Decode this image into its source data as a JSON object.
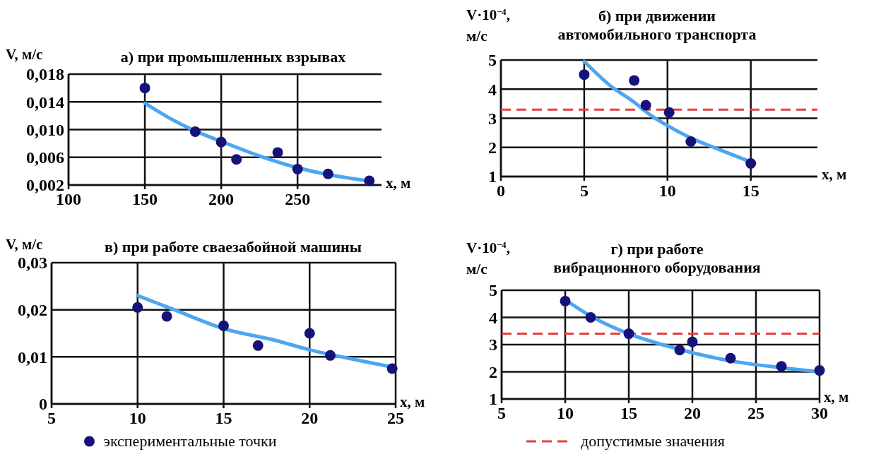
{
  "chart_data": [
    {
      "type": "scatter",
      "title": "а) при промышленных взрывах",
      "ylabel": "V, м/с",
      "xlabel": "x, м",
      "xlim": [
        100,
        305
      ],
      "ylim": [
        0.002,
        0.018
      ],
      "xticks": [
        100,
        150,
        200,
        250
      ],
      "yticks": [
        {
          "value": 0.002,
          "label": "0,002"
        },
        {
          "value": 0.006,
          "label": "0,006"
        },
        {
          "value": 0.01,
          "label": "0,010"
        },
        {
          "value": 0.014,
          "label": "0,014"
        },
        {
          "value": 0.018,
          "label": "0,018"
        }
      ],
      "grid": true,
      "series": [
        {
          "type": "line",
          "marker": "none",
          "color": "#4da6f0",
          "x": [
            150,
            165,
            183,
            200,
            225,
            250,
            270,
            297
          ],
          "values": [
            0.0138,
            0.0118,
            0.0098,
            0.0083,
            0.0062,
            0.0045,
            0.0035,
            0.0026
          ]
        },
        {
          "marker": "circle",
          "color": "#15127a",
          "x": [
            150,
            183,
            200,
            210,
            237,
            250,
            270,
            297
          ],
          "values": [
            0.016,
            0.0097,
            0.0082,
            0.0057,
            0.0067,
            0.0043,
            0.0036,
            0.0026
          ]
        }
      ]
    },
    {
      "type": "scatter",
      "title": "б) при движении\nавтомобильного транспорта",
      "ylabel": "V·10$^{−4}$,\nм/с",
      "xlabel": "x, м",
      "xlim": [
        0,
        19
      ],
      "ylim": [
        1,
        5
      ],
      "xticks": [
        0,
        5,
        10,
        15
      ],
      "yticks": [
        1,
        2,
        3,
        4,
        5
      ],
      "grid": true,
      "ref_lines": [
        {
          "axis": "y",
          "value": 3.3,
          "color": "#e8403c",
          "line_style": "dashed"
        }
      ],
      "series": [
        {
          "type": "line",
          "marker": "none",
          "color": "#4da6f0",
          "x": [
            5,
            6.5,
            8,
            9,
            10,
            11.5,
            13,
            15
          ],
          "values": [
            4.95,
            4.15,
            3.55,
            3.1,
            2.75,
            2.3,
            1.95,
            1.5
          ]
        },
        {
          "marker": "circle",
          "color": "#15127a",
          "x": [
            5,
            8,
            8.7,
            10.1,
            11.4,
            15
          ],
          "values": [
            4.5,
            4.3,
            3.45,
            3.2,
            2.2,
            1.45
          ]
        }
      ]
    },
    {
      "type": "scatter",
      "title": "в) при работе сваезабойной машины",
      "ylabel": "V, м/с",
      "xlabel": "x, м",
      "xlim": [
        5,
        25
      ],
      "ylim": [
        0,
        0.03
      ],
      "xticks": [
        5,
        10,
        15,
        20,
        25
      ],
      "yticks": [
        0,
        {
          "value": 0.01,
          "label": "0,01"
        },
        {
          "value": 0.02,
          "label": "0,02"
        },
        {
          "value": 0.03,
          "label": "0,03"
        }
      ],
      "grid": true,
      "legend": "bottom",
      "series": [
        {
          "type": "line",
          "marker": "none",
          "color": "#4da6f0",
          "x": [
            10,
            12,
            15,
            18,
            20,
            22,
            25
          ],
          "values": [
            0.023,
            0.0202,
            0.016,
            0.0135,
            0.0115,
            0.0099,
            0.0077
          ]
        },
        {
          "marker": "circle",
          "name": "экспериментальные точки",
          "color": "#15127a",
          "x": [
            10,
            11.7,
            15,
            17,
            20,
            21.2,
            24.8
          ],
          "values": [
            0.0205,
            0.0186,
            0.0166,
            0.0124,
            0.015,
            0.0103,
            0.0075
          ]
        }
      ]
    },
    {
      "type": "scatter",
      "title": "г) при работе\nвибрационного оборудования",
      "ylabel": "V·10$^{−4}$,\nм/с",
      "xlabel": "x, м",
      "xlim": [
        5,
        30
      ],
      "ylim": [
        1,
        5
      ],
      "xticks": [
        5,
        10,
        15,
        20,
        25,
        30
      ],
      "yticks": [
        1,
        2,
        3,
        4,
        5
      ],
      "grid": true,
      "ref_lines": [
        {
          "axis": "y",
          "value": 3.4,
          "label": "допустимые значения",
          "color": "#e8403c",
          "line_style": "dashed"
        }
      ],
      "series": [
        {
          "type": "line",
          "marker": "none",
          "color": "#4da6f0",
          "x": [
            10,
            12,
            15,
            18,
            20,
            23,
            27,
            30
          ],
          "values": [
            4.65,
            4.05,
            3.4,
            2.95,
            2.7,
            2.4,
            2.15,
            2.0
          ]
        },
        {
          "marker": "circle",
          "color": "#15127a",
          "x": [
            10,
            12,
            15,
            19,
            20,
            23,
            27,
            30
          ],
          "values": [
            4.6,
            4.0,
            3.4,
            2.8,
            3.1,
            2.5,
            2.2,
            2.05
          ]
        }
      ]
    }
  ]
}
